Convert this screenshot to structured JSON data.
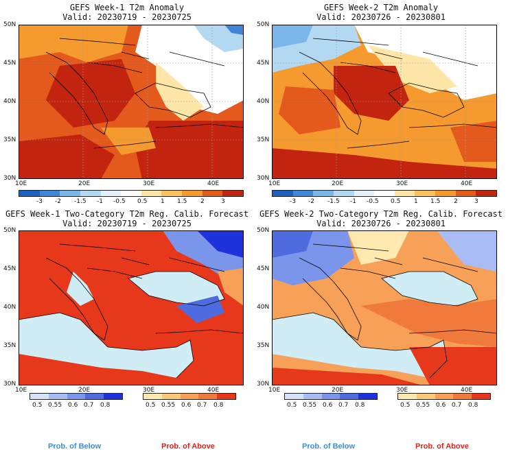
{
  "panels": [
    {
      "title": "GEFS Week-1 T2m Anomaly",
      "valid": "Valid: 20230719 - 20230725"
    },
    {
      "title": "GEFS Week-2 T2m Anomaly",
      "valid": "Valid: 20230726 - 20230801"
    },
    {
      "title": "GEFS Week-1 Two-Category T2m Reg. Calib. Forecast",
      "valid": "Valid: 20230719 - 20230725"
    },
    {
      "title": "GEFS Week-2 Two-Category T2m Reg. Calib. Forecast",
      "valid": "Valid: 20230726 - 20230801"
    }
  ],
  "axes": {
    "lat_labels": [
      "50N",
      "45N",
      "40N",
      "35N",
      "30N"
    ],
    "lon_labels": [
      "10E",
      "20E",
      "30E",
      "40E"
    ]
  },
  "anomaly_colorbar": {
    "ticks": [
      "-3",
      "-2",
      "-1.5",
      "-1",
      "-0.5",
      "0.5",
      "1",
      "1.5",
      "2",
      "3"
    ],
    "colors": [
      "#1f5fc0",
      "#3f86d8",
      "#7ab6ea",
      "#b3d9f2",
      "#e3f1fa",
      "#ffffff",
      "#fde6a8",
      "#fbc25c",
      "#f59a2f",
      "#e4591c",
      "#c3240f"
    ]
  },
  "below_colorbar": {
    "ticks": [
      "0.5",
      "0.55",
      "0.6",
      "0.7",
      "0.8"
    ],
    "colors": [
      "#d8e2fb",
      "#a9bdf4",
      "#7b95ea",
      "#4f6be0",
      "#1f33dc"
    ]
  },
  "above_colorbar": {
    "ticks": [
      "0.5",
      "0.55",
      "0.6",
      "0.7",
      "0.8"
    ],
    "colors": [
      "#fde8b0",
      "#fbc97a",
      "#f6a157",
      "#f07a3b",
      "#e8381c"
    ]
  },
  "legend": {
    "below_label": "Prob. of Below",
    "above_label": "Prob. of Above",
    "below_color": "#3a8ee0",
    "above_color": "#e2231a"
  }
}
